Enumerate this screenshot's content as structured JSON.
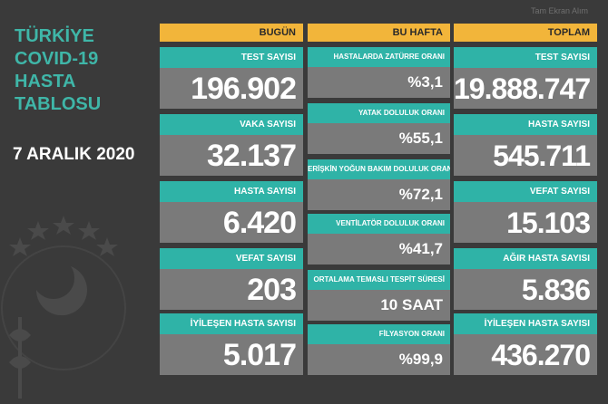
{
  "title": {
    "lines": [
      "TÜRKİYE",
      "COVID-19",
      "HASTA",
      "TABLOSU"
    ]
  },
  "date": "7 ARALIK 2020",
  "top_label": "Tam Ekran Alım",
  "columns": {
    "today": {
      "header": "BUGÜN",
      "cards": [
        {
          "label": "TEST SAYISI",
          "value": "196.902"
        },
        {
          "label": "VAKA SAYISI",
          "value": "32.137"
        },
        {
          "label": "HASTA SAYISI",
          "value": "6.420"
        },
        {
          "label": "VEFAT SAYISI",
          "value": "203"
        },
        {
          "label": "İYİLEŞEN HASTA SAYISI",
          "value": "5.017"
        }
      ]
    },
    "week": {
      "header": "BU HAFTA",
      "cards": [
        {
          "label": "HASTALARDA ZATÜRRE ORANI",
          "value": "%3,1"
        },
        {
          "label": "YATAK DOLULUK ORANI",
          "value": "%55,1"
        },
        {
          "label": "ERİŞKİN YOĞUN BAKIM DOLULUK ORANI",
          "value": "%72,1"
        },
        {
          "label": "VENTİLATÖR DOLULUK ORANI",
          "value": "%41,7"
        },
        {
          "label": "ORTALAMA TEMASLI TESPİT SÜRESİ",
          "value": "10 SAAT"
        },
        {
          "label": "FİLYASYON ORANI",
          "value": "%99,9"
        }
      ]
    },
    "total": {
      "header": "TOPLAM",
      "cards": [
        {
          "label": "TEST SAYISI",
          "value": "19.888.747"
        },
        {
          "label": "HASTA SAYISI",
          "value": "545.711"
        },
        {
          "label": "VEFAT SAYISI",
          "value": "15.103"
        },
        {
          "label": "AĞIR HASTA SAYISI",
          "value": "5.836"
        },
        {
          "label": "İYİLEŞEN HASTA SAYISI",
          "value": "436.270"
        }
      ]
    }
  },
  "colors": {
    "background": "#3a3a3a",
    "header": "#f2b53a",
    "label": "#2fb3a7",
    "value": "#7a7a7a",
    "title": "#3fb6a8"
  },
  "icons": {
    "emblem": "ministry-emblem-icon"
  }
}
